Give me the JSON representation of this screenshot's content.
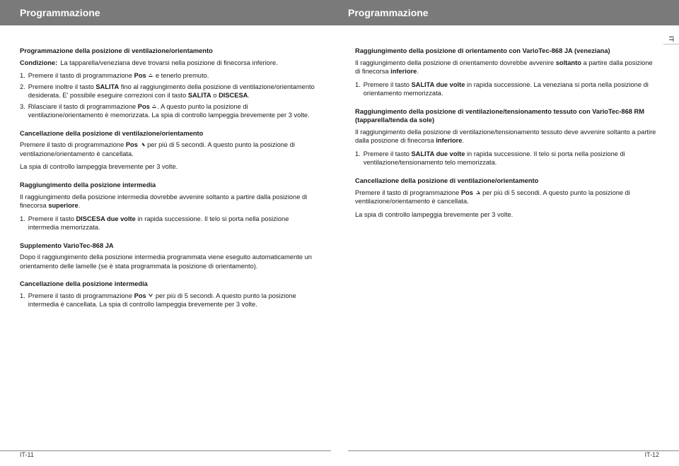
{
  "header": {
    "left": "Programmazione",
    "right": "Programmazione"
  },
  "langTab": "IT",
  "left": {
    "s1": {
      "title": "Programmazione della posizione di ventilazione/orientamento",
      "condLabel": "Condizione:",
      "condText": "La tapparella/veneziana deve trovarsi nella posizione di finecorsa inferiore.",
      "step1a": "Premere il tasto di programmazione ",
      "step1b": "Pos",
      "step1c": " e tenerlo premuto.",
      "step2a": "Premere inoltre il tasto ",
      "step2b": "SALITA",
      "step2c": " fino al raggiungimento della posizione di ventilazione/orientamento desiderata. E' possibile eseguire correzioni con il tasto ",
      "step2d": "SALITA",
      "step2e": " o ",
      "step2f": "DISCESA",
      "step2g": ".",
      "step3a": "Rilasciare il tasto di programmazione ",
      "step3b": "Pos",
      "step3c": ". A questo punto la posizione di ventilazione/orientamento è memorizzata. La spia di controllo lampeggia brevemente per 3 volte."
    },
    "s2": {
      "title": "Cancellazione della posizione di ventilazione/orientamento",
      "p1a": "Premere il tasto di programmazione ",
      "p1b": "Pos",
      "p1c": " per più di 5 secondi. A questo punto la posizione di ventilazione/orientamento è cancellata.",
      "p2": "La spia di controllo lampeggia brevemente per 3 volte."
    },
    "s3": {
      "title": "Raggiungimento della posizione intermedia",
      "p1a": "Il raggiungimento della posizione intermedia dovrebbe avvenire soltanto a partire dalla posizione di finecorsa ",
      "p1b": "superiore",
      "p1c": ".",
      "step1a": "Premere il tasto ",
      "step1b": "DISCESA due volte",
      "step1c": " in rapida successione. Il telo si porta nella posizione intermedia memorizzata."
    },
    "s4": {
      "title": "Supplemento VarioTec-868 JA",
      "p": "Dopo il raggiungimento della posizione intermedia programmata viene eseguito automaticamente un orientamento delle lamelle (se è stata programmata la posizione di orientamento)."
    },
    "s5": {
      "title": "Cancellazione della posizione intermedia",
      "step1a": "Premere il tasto di programmazione ",
      "step1b": "Pos",
      "step1c": " per più di 5 secondi. A questo punto la posizione intermedia è cancellata. La spia di controllo lampeggia brevemente per 3 volte."
    }
  },
  "right": {
    "s1": {
      "title": "Raggiungimento della posizione di orientamento con VarioTec-868 JA (veneziana)",
      "p1a": "Il raggiungimento della posizione di orientamento dovrebbe avvenire ",
      "p1b": "soltanto",
      "p1c": " a partire dalla posizione di finecorsa ",
      "p1d": "inferiore",
      "p1e": ".",
      "step1a": "Premere il tasto ",
      "step1b": "SALITA due volte",
      "step1c": " in rapida successione. La veneziana si porta nella posizione di orientamento memorizzata."
    },
    "s2": {
      "title": "Raggiungimento della posizione di ventilazione/tensionamento tessuto con VarioTec-868 RM (tapparella/tenda da sole)",
      "p1a": "Il raggiungimento della posizione di ventilazione/tensionamento tessuto deve avvenire soltanto a partire dalla posizione di finecorsa ",
      "p1b": "inferiore",
      "p1c": ".",
      "step1a": "Premere il tasto ",
      "step1b": "SALITA due volte",
      "step1c": " in rapida successione. Il telo si porta nella posizione di ventilazione/tensionamento telo memorizzata."
    },
    "s3": {
      "title": "Cancellazione della posizione di ventilazione/orientamento",
      "p1a": "Premere il tasto di programmazione ",
      "p1b": "Pos",
      "p1c": " per più di 5 secondi. A questo punto la posizione di ventilazione/orientamento è cancellata.",
      "p2": "La spia di controllo lampeggia brevemente per 3 volte."
    }
  },
  "footer": {
    "left": "IT-11",
    "right": "IT-12"
  }
}
